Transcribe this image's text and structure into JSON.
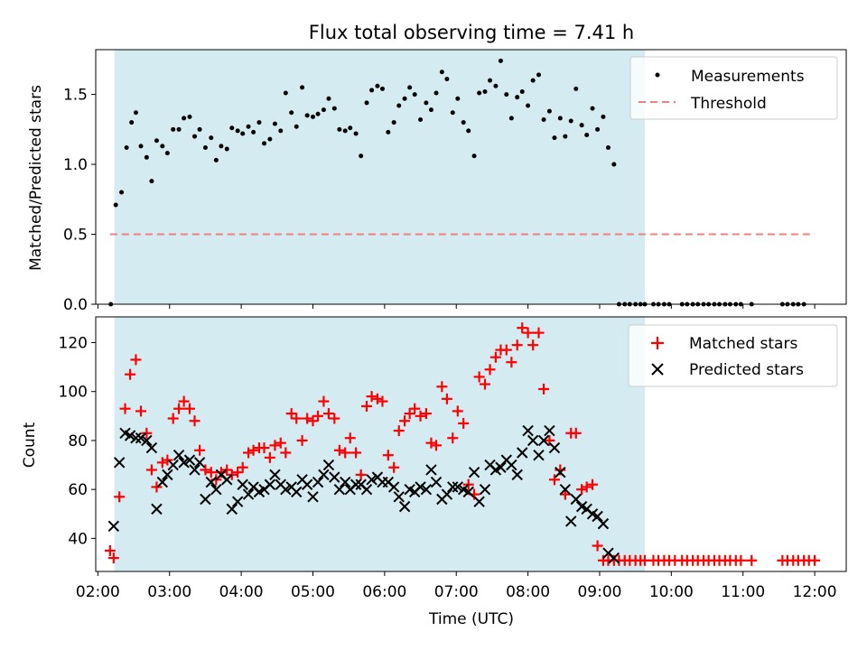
{
  "chart_data": {
    "type": "scatter",
    "title": "Flux total observing time = 7.41 h",
    "xlabel": "Time (UTC)",
    "x_tick_labels": [
      "02:00",
      "03:00",
      "04:00",
      "05:00",
      "06:00",
      "07:00",
      "08:00",
      "09:00",
      "10:00",
      "11:00",
      "12:00"
    ],
    "x_tick_hours": [
      2,
      3,
      4,
      5,
      6,
      7,
      8,
      9,
      10,
      11,
      12
    ],
    "xlim_hours": [
      1.97,
      12.44
    ],
    "observing_window_hours": [
      2.23,
      9.63
    ],
    "observing_window_color": "#d3ebf1",
    "top": {
      "ylabel": "Matched/Predicted stars",
      "ylim": [
        0,
        1.82
      ],
      "yticks": [
        "0.0",
        "0.5",
        "1.0",
        "1.5"
      ],
      "y_tick_values": [
        0,
        0.5,
        1.0,
        1.5
      ],
      "legend": {
        "placement": "top-right",
        "entries": [
          "Measurements",
          "Threshold"
        ]
      },
      "threshold": {
        "name": "Threshold",
        "value": 0.5,
        "x_range_hours": [
          2.17,
          12.0
        ],
        "color": "#f08080"
      },
      "measurements": {
        "name": "Measurements",
        "color": "#000000",
        "x_hours": [
          2.18,
          2.25,
          2.33,
          2.4,
          2.47,
          2.53,
          2.6,
          2.68,
          2.75,
          2.82,
          2.9,
          2.97,
          3.05,
          3.13,
          3.2,
          3.28,
          3.35,
          3.42,
          3.5,
          3.58,
          3.65,
          3.72,
          3.8,
          3.87,
          3.95,
          4.02,
          4.1,
          4.17,
          4.25,
          4.32,
          4.4,
          4.47,
          4.55,
          4.62,
          4.7,
          4.77,
          4.85,
          4.92,
          5.0,
          5.07,
          5.15,
          5.22,
          5.3,
          5.37,
          5.45,
          5.52,
          5.6,
          5.67,
          5.75,
          5.82,
          5.9,
          5.97,
          6.05,
          6.13,
          6.2,
          6.28,
          6.35,
          6.42,
          6.5,
          6.58,
          6.65,
          6.72,
          6.8,
          6.87,
          6.95,
          7.02,
          7.1,
          7.17,
          7.25,
          7.32,
          7.4,
          7.47,
          7.55,
          7.62,
          7.7,
          7.77,
          7.85,
          7.92,
          8.0,
          8.07,
          8.15,
          8.22,
          8.3,
          8.37,
          8.45,
          8.52,
          8.6,
          8.67,
          8.75,
          8.82,
          8.9,
          8.97,
          9.05,
          9.12,
          9.2,
          9.27,
          9.35,
          9.42,
          9.5,
          9.57,
          9.63,
          9.75,
          9.82,
          9.9,
          9.97,
          10.15,
          10.22,
          10.3,
          10.37,
          10.45,
          10.52,
          10.6,
          10.67,
          10.75,
          10.82,
          10.9,
          10.97,
          11.12,
          11.55,
          11.62,
          11.7,
          11.77,
          11.85,
          11.92,
          12.0
        ],
        "y": [
          0.0,
          0.71,
          0.8,
          1.12,
          1.3,
          1.37,
          1.13,
          1.05,
          0.88,
          1.17,
          1.13,
          1.08,
          1.25,
          1.25,
          1.33,
          1.34,
          1.2,
          1.25,
          1.12,
          1.19,
          1.03,
          1.13,
          1.11,
          1.26,
          1.24,
          1.22,
          1.27,
          1.23,
          1.3,
          1.15,
          1.18,
          1.29,
          1.24,
          1.51,
          1.37,
          1.27,
          1.55,
          1.35,
          1.34,
          1.36,
          1.39,
          1.47,
          1.4,
          1.25,
          1.24,
          1.26,
          1.22,
          1.06,
          1.44,
          1.53,
          1.56,
          1.54,
          1.23,
          1.3,
          1.42,
          1.47,
          1.55,
          1.5,
          1.32,
          1.44,
          1.39,
          1.51,
          1.66,
          1.61,
          1.37,
          1.47,
          1.3,
          1.24,
          1.06,
          1.51,
          1.52,
          1.6,
          1.56,
          1.74,
          1.5,
          1.33,
          1.48,
          1.52,
          1.42,
          1.6,
          1.64,
          1.32,
          1.38,
          1.19,
          1.33,
          1.2,
          1.31,
          1.54,
          1.28,
          1.21,
          1.4,
          1.25,
          1.34,
          1.12,
          1.0,
          0.0,
          0.0,
          0.0,
          0.0,
          0.0,
          0.0,
          0.0,
          0.0,
          0.0,
          0.0,
          0.0,
          0.0,
          0.0,
          0.0,
          0.0,
          0.0,
          0.0,
          0.0,
          0.0,
          0.0,
          0.0,
          0.0,
          0.0,
          0.0,
          0.0,
          0.0,
          0.0,
          0.0
        ]
      }
    },
    "bottom": {
      "ylabel": "Count",
      "ylim": [
        26.5,
        130.5
      ],
      "yticks": [
        "40",
        "60",
        "80",
        "100",
        "120"
      ],
      "y_tick_values": [
        40,
        60,
        80,
        100,
        120
      ],
      "legend": {
        "placement": "top-right",
        "entries": [
          "Matched stars",
          "Predicted stars"
        ]
      },
      "matched": {
        "name": "Matched stars",
        "color": "#ff0000",
        "marker": "+",
        "x_hours": [
          2.17,
          2.22,
          2.3,
          2.38,
          2.45,
          2.53,
          2.6,
          2.68,
          2.75,
          2.82,
          2.9,
          2.97,
          3.05,
          3.13,
          3.2,
          3.28,
          3.35,
          3.42,
          3.5,
          3.58,
          3.65,
          3.72,
          3.8,
          3.87,
          3.95,
          4.02,
          4.1,
          4.17,
          4.25,
          4.32,
          4.4,
          4.47,
          4.55,
          4.62,
          4.7,
          4.77,
          4.85,
          4.92,
          5.0,
          5.07,
          5.15,
          5.22,
          5.3,
          5.37,
          5.45,
          5.52,
          5.6,
          5.67,
          5.75,
          5.82,
          5.9,
          5.97,
          6.05,
          6.13,
          6.2,
          6.28,
          6.35,
          6.42,
          6.5,
          6.58,
          6.65,
          6.72,
          6.8,
          6.87,
          6.95,
          7.02,
          7.1,
          7.17,
          7.25,
          7.32,
          7.4,
          7.47,
          7.55,
          7.62,
          7.7,
          7.77,
          7.85,
          7.92,
          8.0,
          8.07,
          8.15,
          8.22,
          8.3,
          8.37,
          8.45,
          8.52,
          8.6,
          8.67,
          8.75,
          8.82,
          8.9,
          8.97,
          9.05,
          9.12,
          9.2,
          9.27,
          9.35,
          9.42,
          9.5,
          9.57,
          9.63,
          9.75,
          9.82,
          9.9,
          9.97,
          10.05,
          10.15,
          10.22,
          10.3,
          10.37,
          10.45,
          10.52,
          10.6,
          10.67,
          10.75,
          10.82,
          10.9,
          10.97,
          11.12,
          11.55,
          11.62,
          11.7,
          11.77,
          11.85,
          11.92,
          12.0
        ],
        "y": [
          35,
          32,
          57,
          93,
          107,
          113,
          92,
          83,
          68,
          61,
          71,
          72,
          89,
          93,
          96,
          93,
          88,
          76,
          68,
          67,
          64,
          67,
          68,
          66,
          67,
          69,
          75,
          76,
          77,
          77,
          73,
          78,
          79,
          75,
          91,
          89,
          80,
          89,
          88,
          90,
          96,
          91,
          89,
          76,
          75,
          81,
          75,
          66,
          94,
          98,
          97,
          96,
          74,
          69,
          84,
          88,
          91,
          93,
          90,
          91,
          79,
          78,
          102,
          97,
          81,
          92,
          87,
          62,
          58,
          106,
          103,
          109,
          114,
          117,
          117,
          112,
          119,
          126,
          124,
          119,
          124,
          101,
          80,
          64,
          68,
          58,
          83,
          83,
          60,
          61,
          62,
          37,
          31,
          31,
          31,
          31,
          31,
          31,
          31,
          31,
          31,
          31,
          31,
          31,
          31,
          31,
          31,
          31,
          31,
          31,
          31,
          31,
          31,
          31,
          31,
          31,
          31,
          31,
          31,
          31,
          31,
          31,
          31,
          31,
          31,
          31
        ]
      },
      "predicted": {
        "name": "Predicted stars",
        "color": "#000000",
        "marker": "x",
        "x_hours": [
          2.22,
          2.3,
          2.38,
          2.45,
          2.53,
          2.6,
          2.68,
          2.75,
          2.82,
          2.9,
          2.97,
          3.05,
          3.13,
          3.2,
          3.28,
          3.35,
          3.42,
          3.5,
          3.58,
          3.65,
          3.72,
          3.8,
          3.87,
          3.95,
          4.02,
          4.1,
          4.17,
          4.25,
          4.32,
          4.4,
          4.47,
          4.55,
          4.62,
          4.7,
          4.77,
          4.85,
          4.92,
          5.0,
          5.07,
          5.15,
          5.22,
          5.3,
          5.37,
          5.45,
          5.52,
          5.6,
          5.67,
          5.75,
          5.82,
          5.9,
          5.97,
          6.05,
          6.13,
          6.2,
          6.28,
          6.35,
          6.42,
          6.5,
          6.58,
          6.65,
          6.72,
          6.8,
          6.87,
          6.95,
          7.02,
          7.1,
          7.17,
          7.25,
          7.32,
          7.4,
          7.47,
          7.55,
          7.62,
          7.7,
          7.77,
          7.85,
          7.92,
          8.0,
          8.07,
          8.15,
          8.22,
          8.3,
          8.37,
          8.45,
          8.52,
          8.6,
          8.67,
          8.75,
          8.82,
          8.9,
          8.97,
          9.05,
          9.12,
          9.2,
          9.27,
          9.35,
          9.42,
          9.5,
          9.57,
          9.63
        ],
        "y": [
          45,
          71,
          83,
          82,
          81,
          81,
          80,
          77,
          52,
          63,
          66,
          70,
          74,
          71,
          72,
          68,
          71,
          56,
          63,
          60,
          66,
          64,
          52,
          55,
          62,
          58,
          61,
          59,
          60,
          62,
          66,
          62,
          60,
          61,
          59,
          64,
          62,
          57,
          63,
          66,
          70,
          65,
          60,
          63,
          60,
          62,
          62,
          60,
          64,
          65,
          63,
          63,
          61,
          57,
          53,
          60,
          59,
          61,
          60,
          68,
          63,
          56,
          58,
          61,
          61,
          60,
          59,
          67,
          55,
          60,
          70,
          68,
          69,
          72,
          70,
          66,
          75,
          84,
          80,
          74,
          80,
          84,
          77,
          67,
          60,
          47,
          56,
          53,
          52,
          50,
          49,
          46,
          34,
          32
        ]
      }
    }
  }
}
